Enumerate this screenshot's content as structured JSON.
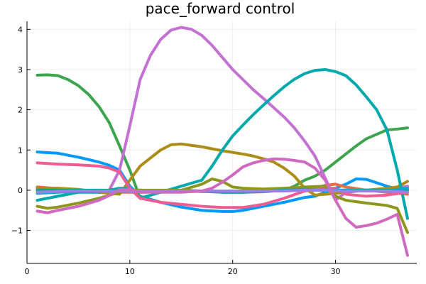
{
  "chart_data": {
    "type": "line",
    "title": "pace_forward control",
    "xlabel": "",
    "ylabel": "",
    "xlim": [
      0,
      37.9
    ],
    "ylim": [
      -1.82,
      4.2
    ],
    "xticks": [
      0,
      10,
      20,
      30
    ],
    "yticks": [
      -1,
      0,
      1,
      2,
      3,
      4
    ],
    "grid": true,
    "legend": "none",
    "series": [
      {
        "color": "#009AFA",
        "x": [
          1,
          3,
          5,
          7,
          8,
          9,
          10,
          11,
          13,
          15,
          17,
          19,
          20,
          21,
          23,
          25,
          27,
          28,
          29,
          30,
          31,
          32,
          33,
          35,
          37
        ],
        "y": [
          0.95,
          0.92,
          0.82,
          0.7,
          0.62,
          0.5,
          0.1,
          -0.15,
          -0.3,
          -0.42,
          -0.5,
          -0.53,
          -0.53,
          -0.5,
          -0.4,
          -0.3,
          -0.18,
          -0.15,
          -0.05,
          0.05,
          0.15,
          0.28,
          0.27,
          0.1,
          -0.05
        ]
      },
      {
        "color": "#E36F47",
        "x": [
          1,
          3,
          5,
          7,
          9,
          11,
          13,
          15,
          17,
          19,
          21,
          23,
          25,
          27,
          28,
          29,
          30,
          31,
          33,
          35,
          37
        ],
        "y": [
          0.08,
          0.04,
          0.0,
          -0.02,
          -0.05,
          -0.05,
          -0.04,
          -0.03,
          -0.03,
          -0.05,
          -0.05,
          -0.04,
          0.0,
          0.02,
          0.05,
          0.12,
          0.15,
          0.08,
          0.0,
          -0.05,
          -0.1
        ]
      },
      {
        "color": "#3EA44E",
        "x": [
          1,
          2,
          3,
          4,
          5,
          6,
          7,
          8,
          9,
          10,
          11,
          13,
          15,
          17,
          19,
          21,
          23,
          25,
          26,
          27,
          28,
          29,
          31,
          32,
          33,
          35,
          36,
          37
        ],
        "y": [
          2.86,
          2.87,
          2.85,
          2.75,
          2.6,
          2.38,
          2.08,
          1.68,
          1.1,
          0.5,
          -0.2,
          -0.05,
          0.0,
          -0.02,
          -0.05,
          -0.05,
          -0.03,
          0.0,
          0.1,
          0.25,
          0.35,
          0.5,
          0.9,
          1.1,
          1.28,
          1.5,
          1.52,
          1.55
        ]
      },
      {
        "color": "#C371D2",
        "x": [
          1,
          2,
          3,
          5,
          7,
          8,
          9,
          10,
          11,
          12,
          13,
          14,
          15,
          16,
          17,
          18,
          19,
          20,
          21,
          22,
          23,
          24,
          25,
          26,
          27,
          28,
          29,
          30,
          31,
          32,
          33,
          35,
          36,
          37
        ],
        "y": [
          -0.05,
          -0.04,
          -0.03,
          -0.04,
          -0.05,
          0.0,
          0.5,
          1.6,
          2.75,
          3.35,
          3.75,
          3.98,
          4.05,
          4.0,
          3.85,
          3.6,
          3.3,
          3.0,
          2.75,
          2.5,
          2.28,
          2.05,
          1.82,
          1.55,
          1.22,
          0.85,
          0.3,
          -0.25,
          -0.05,
          0.0,
          0.0,
          0.0,
          0.05,
          0.1
        ]
      },
      {
        "color": "#AC8D18",
        "x": [
          1,
          3,
          5,
          7,
          9,
          10,
          11,
          13,
          14,
          15,
          17,
          19,
          21,
          22,
          23,
          24,
          25,
          26,
          27,
          28,
          29,
          31,
          33,
          35,
          36,
          37
        ],
        "y": [
          0.05,
          0.05,
          0.02,
          -0.05,
          -0.1,
          0.25,
          0.6,
          1.0,
          1.13,
          1.15,
          1.08,
          0.98,
          0.9,
          0.85,
          0.78,
          0.7,
          0.55,
          0.35,
          0.05,
          -0.12,
          -0.1,
          -0.05,
          0.0,
          0.05,
          0.08,
          0.22
        ]
      },
      {
        "color": "#00A9AC",
        "x": [
          1,
          3,
          5,
          7,
          9,
          10,
          11,
          13,
          15,
          17,
          18,
          19,
          20,
          21,
          22,
          23,
          24,
          25,
          26,
          27,
          28,
          29,
          30,
          31,
          32,
          33,
          34,
          35,
          36,
          37
        ],
        "y": [
          -0.25,
          -0.15,
          -0.05,
          -0.05,
          0.05,
          0.05,
          -0.2,
          -0.05,
          0.1,
          0.25,
          0.6,
          1.0,
          1.35,
          1.62,
          1.88,
          2.12,
          2.35,
          2.57,
          2.76,
          2.9,
          2.98,
          3.0,
          2.95,
          2.85,
          2.62,
          2.32,
          2.0,
          1.5,
          0.5,
          -0.7
        ]
      },
      {
        "color": "#ED5D92",
        "x": [
          1,
          3,
          5,
          7,
          8,
          9,
          10,
          11,
          13,
          15,
          17,
          19,
          21,
          23,
          25,
          27,
          29,
          30,
          31,
          33,
          35,
          37
        ],
        "y": [
          0.68,
          0.65,
          0.63,
          0.6,
          0.55,
          0.45,
          0.05,
          -0.2,
          -0.3,
          -0.35,
          -0.4,
          -0.43,
          -0.43,
          -0.35,
          -0.2,
          -0.02,
          0.05,
          0.05,
          -0.1,
          -0.15,
          -0.12,
          -0.05
        ]
      },
      {
        "color": "#C68125",
        "x": [
          1,
          3,
          5,
          7,
          9,
          11,
          13,
          15,
          17,
          19,
          21,
          23,
          25,
          27,
          29,
          31,
          33,
          35,
          37
        ],
        "y": [
          0.0,
          0.0,
          -0.02,
          -0.03,
          -0.03,
          -0.02,
          -0.02,
          -0.02,
          -0.02,
          -0.03,
          -0.03,
          -0.02,
          0.0,
          0.0,
          0.0,
          0.0,
          0.0,
          0.0,
          0.0
        ]
      },
      {
        "color": "#00A98D",
        "x": [
          1,
          3,
          5,
          7,
          9,
          11,
          13,
          15,
          17,
          19,
          21,
          23,
          25,
          27,
          29,
          31,
          33,
          35,
          37
        ],
        "y": [
          0.0,
          0.0,
          0.0,
          0.0,
          0.0,
          0.0,
          -0.02,
          -0.02,
          -0.03,
          -0.03,
          -0.03,
          -0.03,
          0.0,
          0.0,
          0.0,
          0.0,
          0.0,
          0.0,
          0.0
        ]
      },
      {
        "color": "#8E971D",
        "x": [
          1,
          2,
          3,
          5,
          7,
          9,
          10,
          11,
          13,
          15,
          17,
          18,
          19,
          20,
          21,
          23,
          25,
          27,
          29,
          30,
          31,
          33,
          35,
          36,
          37
        ],
        "y": [
          -0.4,
          -0.45,
          -0.42,
          -0.32,
          -0.2,
          -0.05,
          0.0,
          0.0,
          0.0,
          0.0,
          0.15,
          0.28,
          0.22,
          0.08,
          0.05,
          0.03,
          0.05,
          0.08,
          0.1,
          -0.15,
          -0.25,
          -0.32,
          -0.38,
          -0.45,
          -1.05
        ]
      },
      {
        "color": "#00A8CB",
        "x": [
          1,
          3,
          5,
          7,
          9,
          11,
          13,
          15,
          17,
          19,
          21,
          23,
          25,
          27,
          29,
          31,
          33,
          35,
          37
        ],
        "y": [
          -0.08,
          -0.05,
          -0.03,
          -0.02,
          -0.02,
          -0.02,
          -0.02,
          -0.02,
          -0.02,
          -0.05,
          -0.05,
          -0.03,
          0.0,
          0.02,
          0.0,
          0.0,
          -0.02,
          -0.02,
          0.05
        ]
      },
      {
        "color": "#9B7FE9",
        "x": [
          1,
          3,
          5,
          7,
          9,
          11,
          13,
          15,
          17,
          19,
          21,
          23,
          25,
          27,
          29,
          31,
          33,
          35,
          37
        ],
        "y": [
          -0.05,
          -0.03,
          -0.02,
          -0.02,
          -0.02,
          -0.02,
          -0.02,
          -0.02,
          -0.02,
          -0.02,
          -0.02,
          -0.02,
          -0.02,
          0.0,
          0.0,
          -0.02,
          -0.02,
          -0.02,
          -0.05
        ]
      },
      {
        "color": "#D06AC1",
        "x": [
          1,
          2,
          3,
          5,
          7,
          8,
          9,
          10,
          11,
          13,
          15,
          17,
          18,
          19,
          20,
          21,
          22,
          23,
          24,
          25,
          26,
          27,
          28,
          29,
          30,
          31,
          32,
          33,
          34,
          35,
          36,
          37
        ],
        "y": [
          -0.52,
          -0.56,
          -0.5,
          -0.4,
          -0.25,
          -0.13,
          0.02,
          0.02,
          -0.05,
          -0.05,
          -0.05,
          -0.02,
          0.05,
          0.2,
          0.38,
          0.58,
          0.68,
          0.74,
          0.78,
          0.77,
          0.74,
          0.7,
          0.55,
          0.25,
          -0.25,
          -0.7,
          -0.92,
          -0.88,
          -0.82,
          -0.72,
          -0.6,
          -1.62
        ]
      }
    ]
  }
}
